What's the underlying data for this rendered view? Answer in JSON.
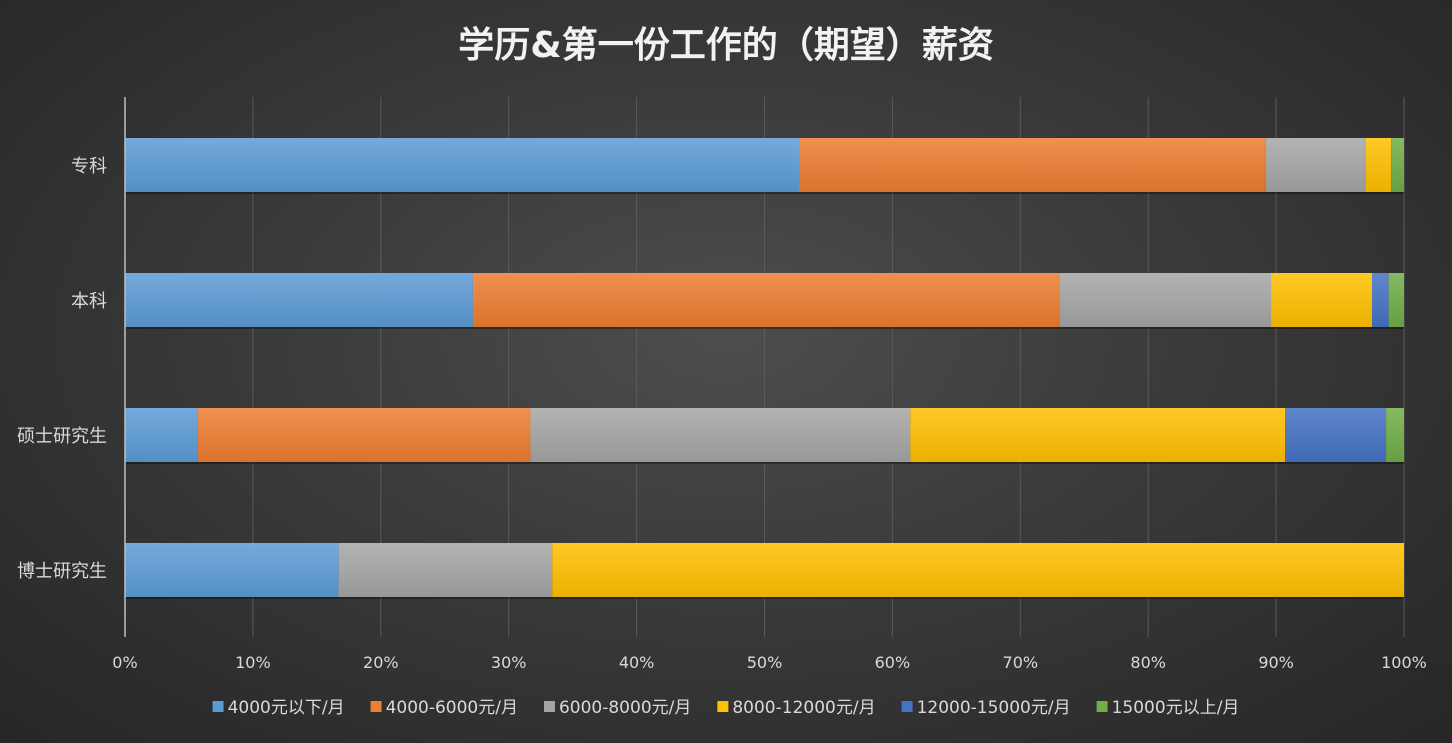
{
  "chart_data": {
    "type": "bar",
    "orientation": "horizontal",
    "stacked": "percent",
    "title": "学历&第一份工作的（期望）薪资",
    "xlabel": "",
    "ylabel": "",
    "xlim": [
      0,
      100
    ],
    "x_ticks": [
      "0%",
      "10%",
      "20%",
      "30%",
      "40%",
      "50%",
      "60%",
      "70%",
      "80%",
      "90%",
      "100%"
    ],
    "grid": true,
    "legend_position": "bottom",
    "categories": [
      "专科",
      "本科",
      "硕士研究生",
      "博士研究生"
    ],
    "series": [
      {
        "name": "4000元以下/月",
        "color": "#5b9bd5",
        "values": [
          52.7,
          27.2,
          5.7,
          16.7
        ]
      },
      {
        "name": "4000-6000元/月",
        "color": "#ed7d31",
        "values": [
          36.5,
          45.9,
          26.0,
          0
        ]
      },
      {
        "name": "6000-8000元/月",
        "color": "#a5a5a5",
        "values": [
          7.8,
          16.5,
          29.7,
          16.7
        ]
      },
      {
        "name": "8000-12000元/月",
        "color": "#ffc000",
        "values": [
          2.0,
          7.9,
          29.3,
          66.6
        ]
      },
      {
        "name": "12000-15000元/月",
        "color": "#4472c4",
        "values": [
          0,
          1.3,
          7.9,
          0
        ]
      },
      {
        "name": "15000元以上/月",
        "color": "#70ad47",
        "values": [
          1.0,
          1.2,
          1.4,
          0
        ]
      }
    ]
  }
}
